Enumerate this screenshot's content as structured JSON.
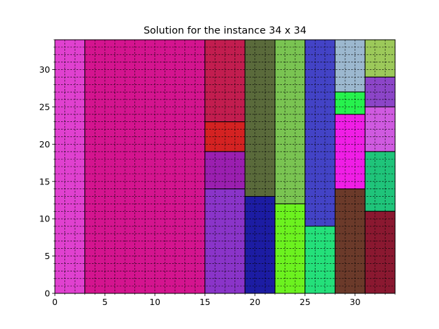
{
  "chart_data": {
    "type": "rectangle-packing",
    "title": "Solution for the instance 34 x 34",
    "xlabel": "",
    "ylabel": "",
    "xlim": [
      0,
      34
    ],
    "ylim": [
      0,
      34
    ],
    "xticks": [
      0,
      5,
      10,
      15,
      20,
      25,
      30
    ],
    "yticks": [
      0,
      5,
      10,
      15,
      20,
      25,
      30
    ],
    "grid": {
      "on": true,
      "minor_step": 1,
      "style": "dashed",
      "color": "#000000"
    },
    "rectangles": [
      {
        "x": 0,
        "y": 0,
        "w": 3,
        "h": 34,
        "color": "#e041d0"
      },
      {
        "x": 3,
        "y": 0,
        "w": 12,
        "h": 34,
        "color": "#d4148f"
      },
      {
        "x": 15,
        "y": 23,
        "w": 4,
        "h": 11,
        "color": "#c21d4f"
      },
      {
        "x": 15,
        "y": 19,
        "w": 4,
        "h": 4,
        "color": "#d42222"
      },
      {
        "x": 15,
        "y": 14,
        "w": 4,
        "h": 5,
        "color": "#9b1fb0"
      },
      {
        "x": 15,
        "y": 0,
        "w": 4,
        "h": 14,
        "color": "#8a34c9"
      },
      {
        "x": 19,
        "y": 13,
        "w": 3,
        "h": 21,
        "color": "#5a6a3b"
      },
      {
        "x": 19,
        "y": 0,
        "w": 3,
        "h": 13,
        "color": "#1c1ca3"
      },
      {
        "x": 22,
        "y": 12,
        "w": 3,
        "h": 22,
        "color": "#7ac452"
      },
      {
        "x": 22,
        "y": 0,
        "w": 3,
        "h": 12,
        "color": "#6cf21f"
      },
      {
        "x": 25,
        "y": 9,
        "w": 3,
        "h": 25,
        "color": "#4343c6"
      },
      {
        "x": 25,
        "y": 0,
        "w": 3,
        "h": 9,
        "color": "#24e07a"
      },
      {
        "x": 28,
        "y": 27,
        "w": 3,
        "h": 7,
        "color": "#9cb8cf"
      },
      {
        "x": 28,
        "y": 24,
        "w": 3,
        "h": 3,
        "color": "#26f24d"
      },
      {
        "x": 28,
        "y": 14,
        "w": 3,
        "h": 10,
        "color": "#f01ee6"
      },
      {
        "x": 28,
        "y": 0,
        "w": 3,
        "h": 14,
        "color": "#6b3a2a"
      },
      {
        "x": 31,
        "y": 29,
        "w": 3,
        "h": 5,
        "color": "#9cc95a"
      },
      {
        "x": 31,
        "y": 25,
        "w": 3,
        "h": 4,
        "color": "#8c45c8"
      },
      {
        "x": 31,
        "y": 19,
        "w": 3,
        "h": 6,
        "color": "#cf5ae0"
      },
      {
        "x": 31,
        "y": 11,
        "w": 3,
        "h": 8,
        "color": "#1fc47a"
      },
      {
        "x": 31,
        "y": 0,
        "w": 3,
        "h": 11,
        "color": "#8a1830"
      }
    ]
  }
}
